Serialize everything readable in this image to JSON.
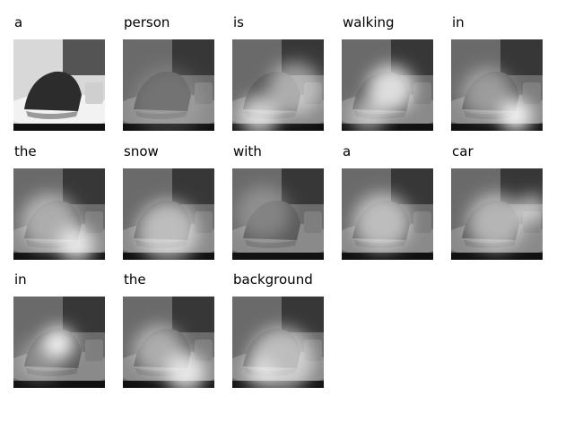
{
  "figure": {
    "caption_words": [
      {
        "word": "a"
      },
      {
        "word": "person"
      },
      {
        "word": "is"
      },
      {
        "word": "walking"
      },
      {
        "word": "in"
      },
      {
        "word": "the"
      },
      {
        "word": "snow"
      },
      {
        "word": "with"
      },
      {
        "word": "a"
      },
      {
        "word": "car"
      },
      {
        "word": "in"
      },
      {
        "word": "the"
      },
      {
        "word": "background"
      }
    ]
  }
}
